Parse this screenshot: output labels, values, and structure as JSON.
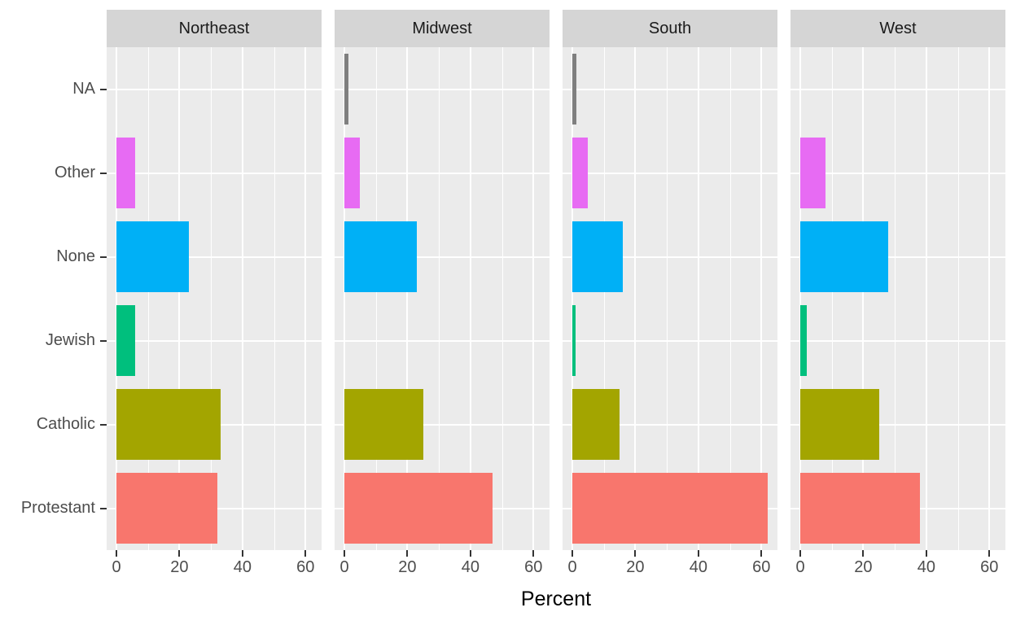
{
  "chart": {
    "xlabel": "Percent"
  },
  "chart_data": {
    "type": "bar",
    "orientation": "horizontal",
    "faceted": true,
    "facets": [
      "Northeast",
      "Midwest",
      "South",
      "West"
    ],
    "categories_top_to_bottom": [
      "NA",
      "Other",
      "None",
      "Jewish",
      "Catholic",
      "Protestant"
    ],
    "series": [
      {
        "name": "Northeast",
        "values": [
          0,
          6,
          23,
          6,
          33,
          32
        ]
      },
      {
        "name": "Midwest",
        "values": [
          1.2,
          5,
          23,
          0,
          25,
          47
        ]
      },
      {
        "name": "South",
        "values": [
          1.2,
          5,
          16,
          1,
          15,
          62
        ]
      },
      {
        "name": "West",
        "values": [
          0,
          8,
          28,
          2,
          25,
          38
        ]
      }
    ],
    "category_colors": {
      "NA": "#7F7F7F",
      "Other": "#E76BF3",
      "None": "#00B0F6",
      "Jewish": "#00BF7D",
      "Catholic": "#A3A500",
      "Protestant": "#F8766D"
    },
    "xlabel": "Percent",
    "x_ticks": [
      0,
      20,
      40,
      60
    ],
    "x_minor_ticks": [
      10,
      30,
      50
    ],
    "xlim_data": [
      0,
      62
    ],
    "xlim_panel": [
      -3.1,
      65.1
    ],
    "grid": true,
    "legend": "none",
    "panel_background": "#ebebeb",
    "strip_background": "#d5d5d5",
    "gridline_color": "#ffffff",
    "axis_text_color": "#4d4d4d",
    "na_bar_color": "#7F7F7F"
  }
}
